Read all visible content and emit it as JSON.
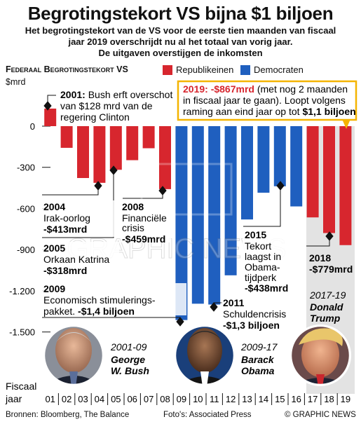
{
  "title": "Begrotingstekort VS bijna $1 biljoen",
  "subtitle_lines": [
    "Het begrotingstekort van de VS voor de eerste tien maanden van fiscaal",
    "jaar 2019 overschrijdt nu al het totaal van vorig jaar.",
    "De uitgaven overstijgen de inkomsten"
  ],
  "series_title": "Federaal Begrotingstekort VS",
  "legend": [
    {
      "label": "Republikeinen",
      "color": "#d7262e"
    },
    {
      "label": "Democraten",
      "color": "#1f5fbf"
    }
  ],
  "y_unit": "$mrd",
  "x_axis_label": [
    "Fiscaal",
    "jaar"
  ],
  "chart_data": {
    "type": "bar",
    "categories": [
      "01",
      "02",
      "03",
      "04",
      "05",
      "06",
      "07",
      "08",
      "09",
      "10",
      "11",
      "12",
      "13",
      "14",
      "15",
      "16",
      "17",
      "18",
      "19"
    ],
    "values": [
      128,
      -158,
      -378,
      -413,
      -318,
      -248,
      -161,
      -459,
      -1413,
      -1294,
      -1300,
      -1087,
      -680,
      -485,
      -438,
      -585,
      -665,
      -779,
      -867
    ],
    "party": [
      "R",
      "R",
      "R",
      "R",
      "R",
      "R",
      "R",
      "R",
      "D",
      "D",
      "D",
      "D",
      "D",
      "D",
      "D",
      "D",
      "R",
      "R",
      "R"
    ],
    "ylim": [
      -1650,
      200
    ],
    "yticks": [
      0,
      -300,
      -600,
      -900,
      -1200,
      -1500
    ],
    "ytick_labels": [
      "0",
      "-300",
      "-600",
      "-900",
      "-1.200",
      "-1.500"
    ],
    "grid": false
  },
  "annotations": [
    {
      "year": "2001",
      "lines": [
        "Bush erft overschot",
        "van $128 mrd van de",
        "regering Clinton"
      ]
    },
    {
      "year": "2004",
      "lines": [
        "Irak-oorlog"
      ],
      "value": "-$413mrd"
    },
    {
      "year": "2005",
      "lines": [
        "Orkaan Katrina"
      ],
      "value": "-$318mrd"
    },
    {
      "year": "2008",
      "lines": [
        "Financiële",
        "crisis"
      ],
      "value": "-$459mrd"
    },
    {
      "year": "2009",
      "lines": [
        "Economisch stimulerings-"
      ],
      "last_line": "pakket.",
      "value": "-$1,4 biljoen"
    },
    {
      "year": "2011",
      "lines": [
        "Schuldencrisis"
      ],
      "value": "-$1,3 biljoen"
    },
    {
      "year": "2015",
      "lines": [
        "Tekort",
        "laagst in",
        "Obama-",
        "tijdperk"
      ],
      "value": "-$438mrd"
    },
    {
      "year": "2018",
      "lines": [],
      "value": "-$779mrd"
    }
  ],
  "callout_2019": {
    "head": "2019: -$867mrd",
    "line1_rest": "(met nog 2 maanden",
    "line2": "in fiscaal jaar te gaan). Loopt volgens",
    "line3_pre": "raming aan eind jaar op tot",
    "line3_bold": "$1,1 biljoen"
  },
  "presidents": [
    {
      "years": "2001-09",
      "name_lines": [
        "George",
        "W. Bush"
      ]
    },
    {
      "years": "2009-17",
      "name_lines": [
        "Barack",
        "Obama"
      ]
    },
    {
      "years": "2017-19",
      "name_lines": [
        "Donald",
        "Trump"
      ]
    }
  ],
  "footer": {
    "sources": "Bronnen: Bloomberg, The Balance",
    "photos": "Foto's: Associated Press",
    "credit": "© GRAPHIC NEWS"
  },
  "watermark": "GRAPHIC NEWS"
}
